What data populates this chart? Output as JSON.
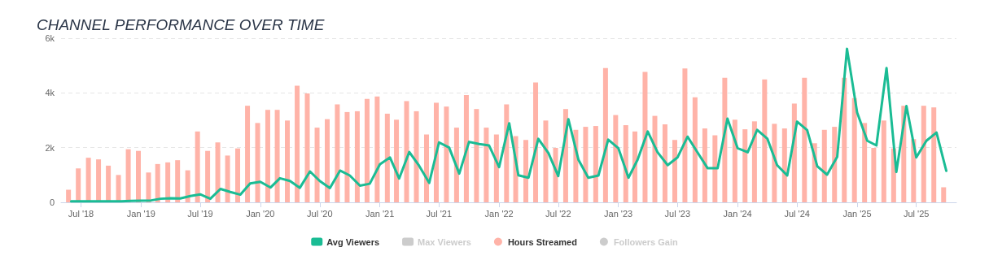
{
  "chart_data": {
    "type": "bar",
    "title": "CHANNEL PERFORMANCE OVER TIME",
    "x": [
      "2018-06",
      "2018-07",
      "2018-08",
      "2018-09",
      "2018-10",
      "2018-11",
      "2018-12",
      "2019-01",
      "2019-02",
      "2019-03",
      "2019-04",
      "2019-05",
      "2019-06",
      "2019-07",
      "2019-08",
      "2019-09",
      "2019-10",
      "2019-11",
      "2019-12",
      "2020-01",
      "2020-02",
      "2020-03",
      "2020-04",
      "2020-05",
      "2020-06",
      "2020-07",
      "2020-08",
      "2020-09",
      "2020-10",
      "2020-11",
      "2020-12",
      "2021-01",
      "2021-02",
      "2021-03",
      "2021-04",
      "2021-05",
      "2021-06",
      "2021-07",
      "2021-08",
      "2021-09",
      "2021-10",
      "2021-11",
      "2021-12",
      "2022-01",
      "2022-02",
      "2022-03",
      "2022-04",
      "2022-05",
      "2022-06",
      "2022-07",
      "2022-08",
      "2022-09",
      "2022-10",
      "2022-11",
      "2022-12",
      "2023-01",
      "2023-02",
      "2023-03",
      "2023-04",
      "2023-05",
      "2023-06",
      "2023-07",
      "2023-08",
      "2023-09",
      "2023-10",
      "2023-11",
      "2023-12",
      "2024-01",
      "2024-02",
      "2024-03",
      "2024-04",
      "2024-05",
      "2024-06",
      "2024-07",
      "2024-08",
      "2024-09",
      "2024-10",
      "2024-11",
      "2024-12",
      "2025-01",
      "2025-02",
      "2025-03",
      "2025-04",
      "2025-05",
      "2025-06",
      "2025-07",
      "2025-08",
      "2025-09",
      "2025-10"
    ],
    "series": [
      {
        "name": "Avg Viewers",
        "type": "line",
        "color": "#1abc94",
        "values": [
          40,
          40,
          40,
          40,
          40,
          40,
          50,
          60,
          70,
          130,
          150,
          140,
          230,
          290,
          130,
          490,
          380,
          280,
          690,
          750,
          540,
          880,
          780,
          530,
          1130,
          780,
          520,
          1160,
          980,
          610,
          680,
          1390,
          1640,
          870,
          1840,
          1340,
          710,
          2190,
          2000,
          1050,
          2210,
          2130,
          2080,
          1290,
          2890,
          990,
          900,
          2320,
          1800,
          960,
          3040,
          1550,
          900,
          980,
          2290,
          1980,
          900,
          1560,
          2590,
          1830,
          1360,
          1640,
          2400,
          1810,
          1250,
          1250,
          3060,
          1980,
          1830,
          2650,
          2330,
          1360,
          980,
          2950,
          2640,
          1320,
          1010,
          1660,
          5610,
          3280,
          2250,
          2080,
          4910,
          1110,
          3520,
          1640,
          2250,
          2550,
          1150
        ]
      },
      {
        "name": "Max Viewers",
        "type": "line",
        "color": "#cccccc",
        "values": [
          null,
          null,
          null,
          null,
          null,
          null,
          null,
          null,
          null,
          null,
          null,
          null,
          null,
          null,
          null,
          null,
          null,
          null,
          null,
          null,
          null,
          null,
          null,
          null,
          null,
          null,
          null,
          null,
          null,
          null,
          null,
          null,
          null,
          null,
          null,
          null,
          null,
          null,
          null,
          null,
          null,
          null,
          null,
          null,
          null,
          null,
          null,
          null,
          null,
          null,
          null,
          null,
          null,
          null,
          null,
          null,
          null,
          null,
          null,
          null,
          null,
          null,
          null,
          null,
          null,
          null,
          null,
          null,
          null,
          null,
          null,
          null,
          null,
          null,
          null,
          null,
          null,
          null,
          null,
          null,
          null,
          null,
          null,
          null,
          null,
          null,
          null,
          null,
          null
        ]
      },
      {
        "name": "Hours Streamed",
        "color": "#ffb3a8",
        "values": [
          460,
          1240,
          1630,
          1570,
          1340,
          1000,
          1940,
          1880,
          1090,
          1400,
          1460,
          1540,
          1170,
          2590,
          1880,
          2190,
          1710,
          1970,
          3530,
          2900,
          3380,
          3380,
          2990,
          4260,
          3980,
          2730,
          3040,
          3580,
          3300,
          3330,
          3780,
          3870,
          3240,
          3020,
          3700,
          3330,
          2480,
          3640,
          3500,
          2730,
          3920,
          3410,
          2730,
          2480,
          3580,
          2420,
          2280,
          4380,
          2990,
          1990,
          3410,
          2650,
          2760,
          2790,
          4910,
          3190,
          2820,
          2590,
          4770,
          3160,
          2850,
          2280,
          4890,
          3840,
          2700,
          2450,
          4550,
          3020,
          2670,
          2960,
          4490,
          2870,
          2700,
          3610,
          4550,
          2160,
          2650,
          2760,
          4550,
          3810,
          2900,
          1990,
          2990,
          1970,
          3530,
          2310,
          3530,
          3470,
          550
        ]
      },
      {
        "name": "Followers Gain",
        "color": "#cccccc",
        "values": [
          null,
          null,
          null,
          null,
          null,
          null,
          null,
          null,
          null,
          null,
          null,
          null,
          null,
          null,
          null,
          null,
          null,
          null,
          null,
          null,
          null,
          null,
          null,
          null,
          null,
          null,
          null,
          null,
          null,
          null,
          null,
          null,
          null,
          null,
          null,
          null,
          null,
          null,
          null,
          null,
          null,
          null,
          null,
          null,
          null,
          null,
          null,
          null,
          null,
          null,
          null,
          null,
          null,
          null,
          null,
          null,
          null,
          null,
          null,
          null,
          null,
          null,
          null,
          null,
          null,
          null,
          null,
          null,
          null,
          null,
          null,
          null,
          null,
          null,
          null,
          null,
          null,
          null,
          null,
          null,
          null,
          null,
          null,
          null,
          null,
          null,
          null,
          null,
          null
        ]
      }
    ],
    "xlim": [
      "2018-05",
      "2025-11"
    ],
    "xticks": [
      {
        "value": "2018-07",
        "label": "Jul '18"
      },
      {
        "value": "2019-01",
        "label": "Jan '19"
      },
      {
        "value": "2019-07",
        "label": "Jul '19"
      },
      {
        "value": "2020-01",
        "label": "Jan '20"
      },
      {
        "value": "2020-07",
        "label": "Jul '20"
      },
      {
        "value": "2021-01",
        "label": "Jan '21"
      },
      {
        "value": "2021-07",
        "label": "Jul '21"
      },
      {
        "value": "2022-01",
        "label": "Jan '22"
      },
      {
        "value": "2022-07",
        "label": "Jul '22"
      },
      {
        "value": "2023-01",
        "label": "Jan '23"
      },
      {
        "value": "2023-07",
        "label": "Jul '23"
      },
      {
        "value": "2024-01",
        "label": "Jan '24"
      },
      {
        "value": "2024-07",
        "label": "Jul '24"
      },
      {
        "value": "2025-01",
        "label": "Jan '25"
      },
      {
        "value": "2025-07",
        "label": "Jul '25"
      }
    ],
    "ylim": [
      0,
      6000
    ],
    "yticks": [
      {
        "value": 0,
        "label": "0"
      },
      {
        "value": 2000,
        "label": "2k"
      },
      {
        "value": 4000,
        "label": "4k"
      },
      {
        "value": 6000,
        "label": "6k"
      }
    ],
    "grid": "y",
    "legend": "bottom",
    "marker": "none",
    "line_style": "solid"
  }
}
